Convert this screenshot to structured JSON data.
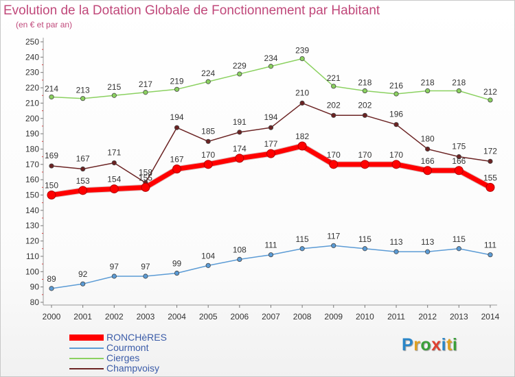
{
  "title": "Evolution de la Dotation Globale de Fonctionnement par Habitant",
  "subtitle": "(en € et par an)",
  "logo": "Proxiti",
  "chart_data": {
    "type": "line",
    "x": [
      "2000",
      "2001",
      "2002",
      "2003",
      "2004",
      "2005",
      "2006",
      "2007",
      "2008",
      "2009",
      "2010",
      "2011",
      "2012",
      "2013",
      "2014"
    ],
    "ylim": [
      80,
      250
    ],
    "yticks": [
      80,
      90,
      100,
      110,
      120,
      130,
      140,
      150,
      160,
      170,
      180,
      190,
      200,
      210,
      220,
      230,
      240,
      250
    ],
    "grid": false,
    "legend_position": "bottom-left",
    "series": [
      {
        "name": "RONCHèRES",
        "color": "#ff0000",
        "values": [
          150,
          153,
          154,
          155,
          167,
          170,
          174,
          177,
          182,
          170,
          170,
          170,
          166,
          166,
          155
        ]
      },
      {
        "name": "Courmont",
        "color": "#5b9bd5",
        "values": [
          89,
          92,
          97,
          97,
          99,
          104,
          108,
          111,
          115,
          117,
          115,
          113,
          113,
          115,
          111
        ]
      },
      {
        "name": "Cierges",
        "color": "#8bd160",
        "values": [
          214,
          213,
          215,
          217,
          219,
          224,
          229,
          234,
          239,
          221,
          218,
          216,
          218,
          218,
          212
        ]
      },
      {
        "name": "Champvoisy",
        "color": "#6b2323",
        "values": [
          169,
          167,
          171,
          158,
          194,
          185,
          191,
          194,
          210,
          202,
          202,
          196,
          180,
          175,
          172
        ]
      }
    ],
    "data_labels": {
      "RONCHèRES": [
        "150",
        "153",
        "154",
        "155",
        "167",
        "170",
        "174",
        "177",
        "182",
        "170",
        "170",
        "170",
        "166",
        "166",
        "155"
      ],
      "Courmont": [
        "89",
        "92",
        "97",
        "97",
        "99",
        "104",
        "108",
        "111",
        "115",
        "117",
        "115",
        "113",
        "113",
        "115",
        "111"
      ],
      "Cierges": [
        "214",
        "213",
        "215",
        "217",
        "219",
        "224",
        "229",
        "234",
        "239",
        "221",
        "218",
        "216",
        "218",
        "218",
        "212"
      ],
      "Champvoisy": [
        "169",
        "167",
        "171",
        "158",
        "194",
        "185",
        "191",
        "194",
        "210",
        "202",
        "202",
        "196",
        "180",
        "175",
        "172"
      ]
    }
  }
}
